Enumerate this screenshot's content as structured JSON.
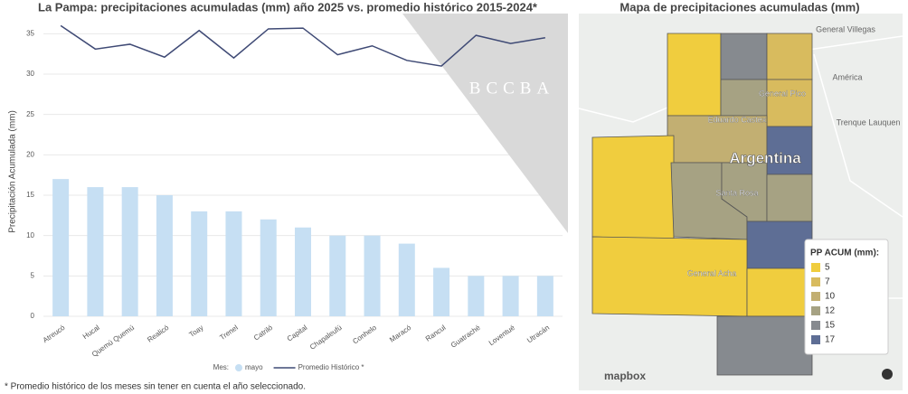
{
  "chart_data": {
    "type": "bar-line",
    "title": "La Pampa: precipitaciones acumuladas (mm) año 2025 vs. promedio histórico 2015-2024*",
    "y_label": "Precipitación Acumulada (mm)",
    "categories": [
      "Atreucó",
      "Hucal",
      "Quemú Quemú",
      "Realicó",
      "Toay",
      "Trenel",
      "Catriló",
      "Capital",
      "Chapaleufú",
      "Conhelo",
      "Maracó",
      "Rancul",
      "Guatraché",
      "Loventué",
      "Utracán"
    ],
    "series": [
      {
        "name": "mayo",
        "type": "bar",
        "color": "#c6dff3",
        "values": [
          17,
          16,
          16,
          15,
          13,
          13,
          12,
          11,
          10,
          10,
          9,
          6,
          5,
          5,
          5
        ]
      },
      {
        "name": "Promedio Histórico *",
        "type": "line",
        "color": "#3f4a75",
        "values": [
          36,
          33.1,
          33.7,
          32.1,
          35.4,
          32,
          35.6,
          35.7,
          32.4,
          33.5,
          31.7,
          31,
          34.8,
          33.8,
          34.5
        ]
      }
    ],
    "legend_title": "Mes:",
    "ylim": [
      0,
      37.5
    ],
    "yticks": [
      0,
      5,
      10,
      15,
      20,
      25,
      30,
      35
    ],
    "grid": true,
    "watermark": "BCCBA",
    "footnote": "* Promedio histórico de los meses sin tener en cuenta el año seleccionado."
  },
  "map": {
    "title": "Mapa de precipitaciones acumuladas (mm)",
    "legend": {
      "title": "PP ACUM (mm):",
      "values": [
        5,
        7,
        10,
        12,
        15,
        17
      ],
      "colors": [
        "#f0cd3e",
        "#d8bb5e",
        "#c2af72",
        "#a6a283",
        "#868a8f",
        "#5e6e95"
      ]
    },
    "places": [
      "General Villegas",
      "América",
      "Trenque Lauquen",
      "General Pico",
      "Eduardo Castex",
      "Argentina",
      "Santa Rosa",
      "General Acha"
    ],
    "attribution": "mapbox"
  }
}
